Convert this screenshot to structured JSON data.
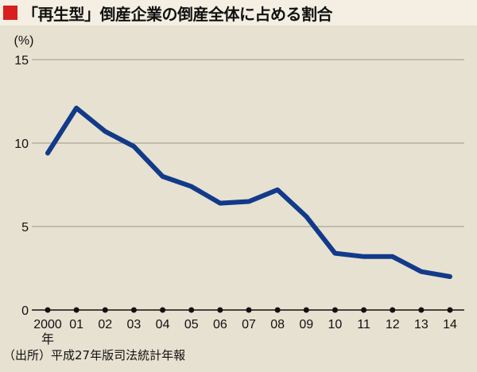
{
  "header": {
    "title": "「再生型」倒産企業の倒産全体に占める割合"
  },
  "footer": {
    "source": "（出所）平成27年版司法統計年報"
  },
  "colors": {
    "accent": "#d81e1e",
    "line": "#123a8a",
    "plot_background": "#e7e1d1",
    "page_background": "#f4efe2"
  },
  "chart_data": {
    "type": "line",
    "title": "「再生型」倒産企業の倒産全体に占める割合",
    "ylabel": "(%)",
    "xlabel": "",
    "year_suffix": "年",
    "ylim": [
      0,
      15
    ],
    "yticks": [
      0,
      5,
      10,
      15
    ],
    "grid": true,
    "categories": [
      "2000",
      "01",
      "02",
      "03",
      "04",
      "05",
      "06",
      "07",
      "08",
      "09",
      "10",
      "11",
      "12",
      "13",
      "14"
    ],
    "series": [
      {
        "values": [
          9.4,
          12.1,
          10.7,
          9.8,
          8.0,
          7.4,
          6.4,
          6.5,
          7.2,
          5.6,
          3.4,
          3.2,
          3.2,
          2.3,
          2.0
        ]
      }
    ]
  }
}
